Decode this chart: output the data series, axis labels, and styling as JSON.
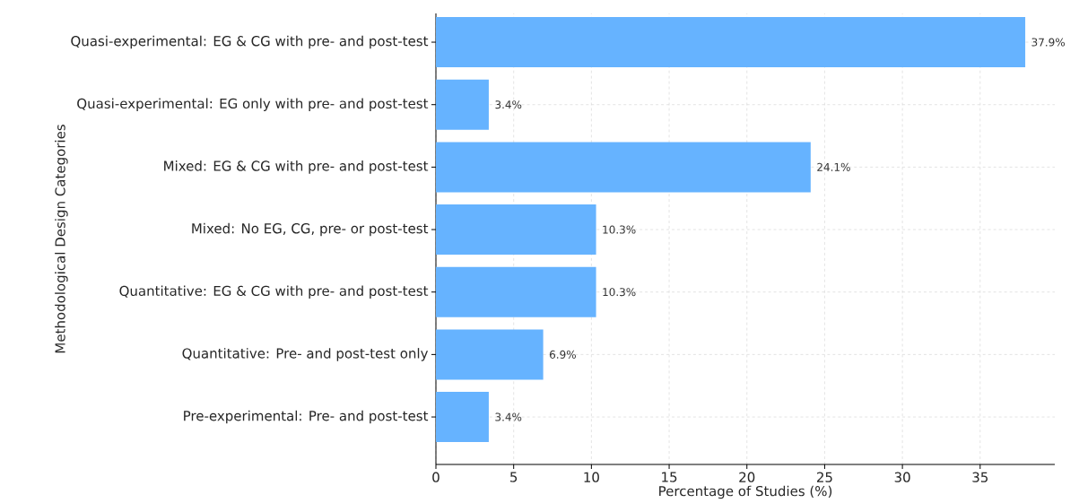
{
  "chart_data": {
    "type": "bar",
    "orientation": "horizontal",
    "xlabel": "Percentage of Studies (%)",
    "ylabel": "Methodological Design Categories",
    "categories": [
      "Quasi-experimental: EG & CG with pre- and post-test",
      "Quasi-experimental: EG only with pre- and post-test",
      "Mixed: EG & CG with pre- and post-test",
      "Mixed: No EG, CG, pre- or post-test",
      "Quantitative: EG & CG with pre- and post-test",
      "Quantitative: Pre- and post-test only",
      "Pre-experimental: Pre- and post-test"
    ],
    "values": [
      37.9,
      3.4,
      24.1,
      10.3,
      10.3,
      6.9,
      3.4
    ],
    "value_labels": [
      "37.9%",
      "3.4%",
      "24.1%",
      "10.3%",
      "10.3%",
      "6.9%",
      "3.4%"
    ],
    "color": "#66b3ff",
    "xlim": [
      0,
      39.8
    ],
    "xticks": [
      0,
      5,
      10,
      15,
      20,
      25,
      30,
      35
    ],
    "grid": true
  }
}
